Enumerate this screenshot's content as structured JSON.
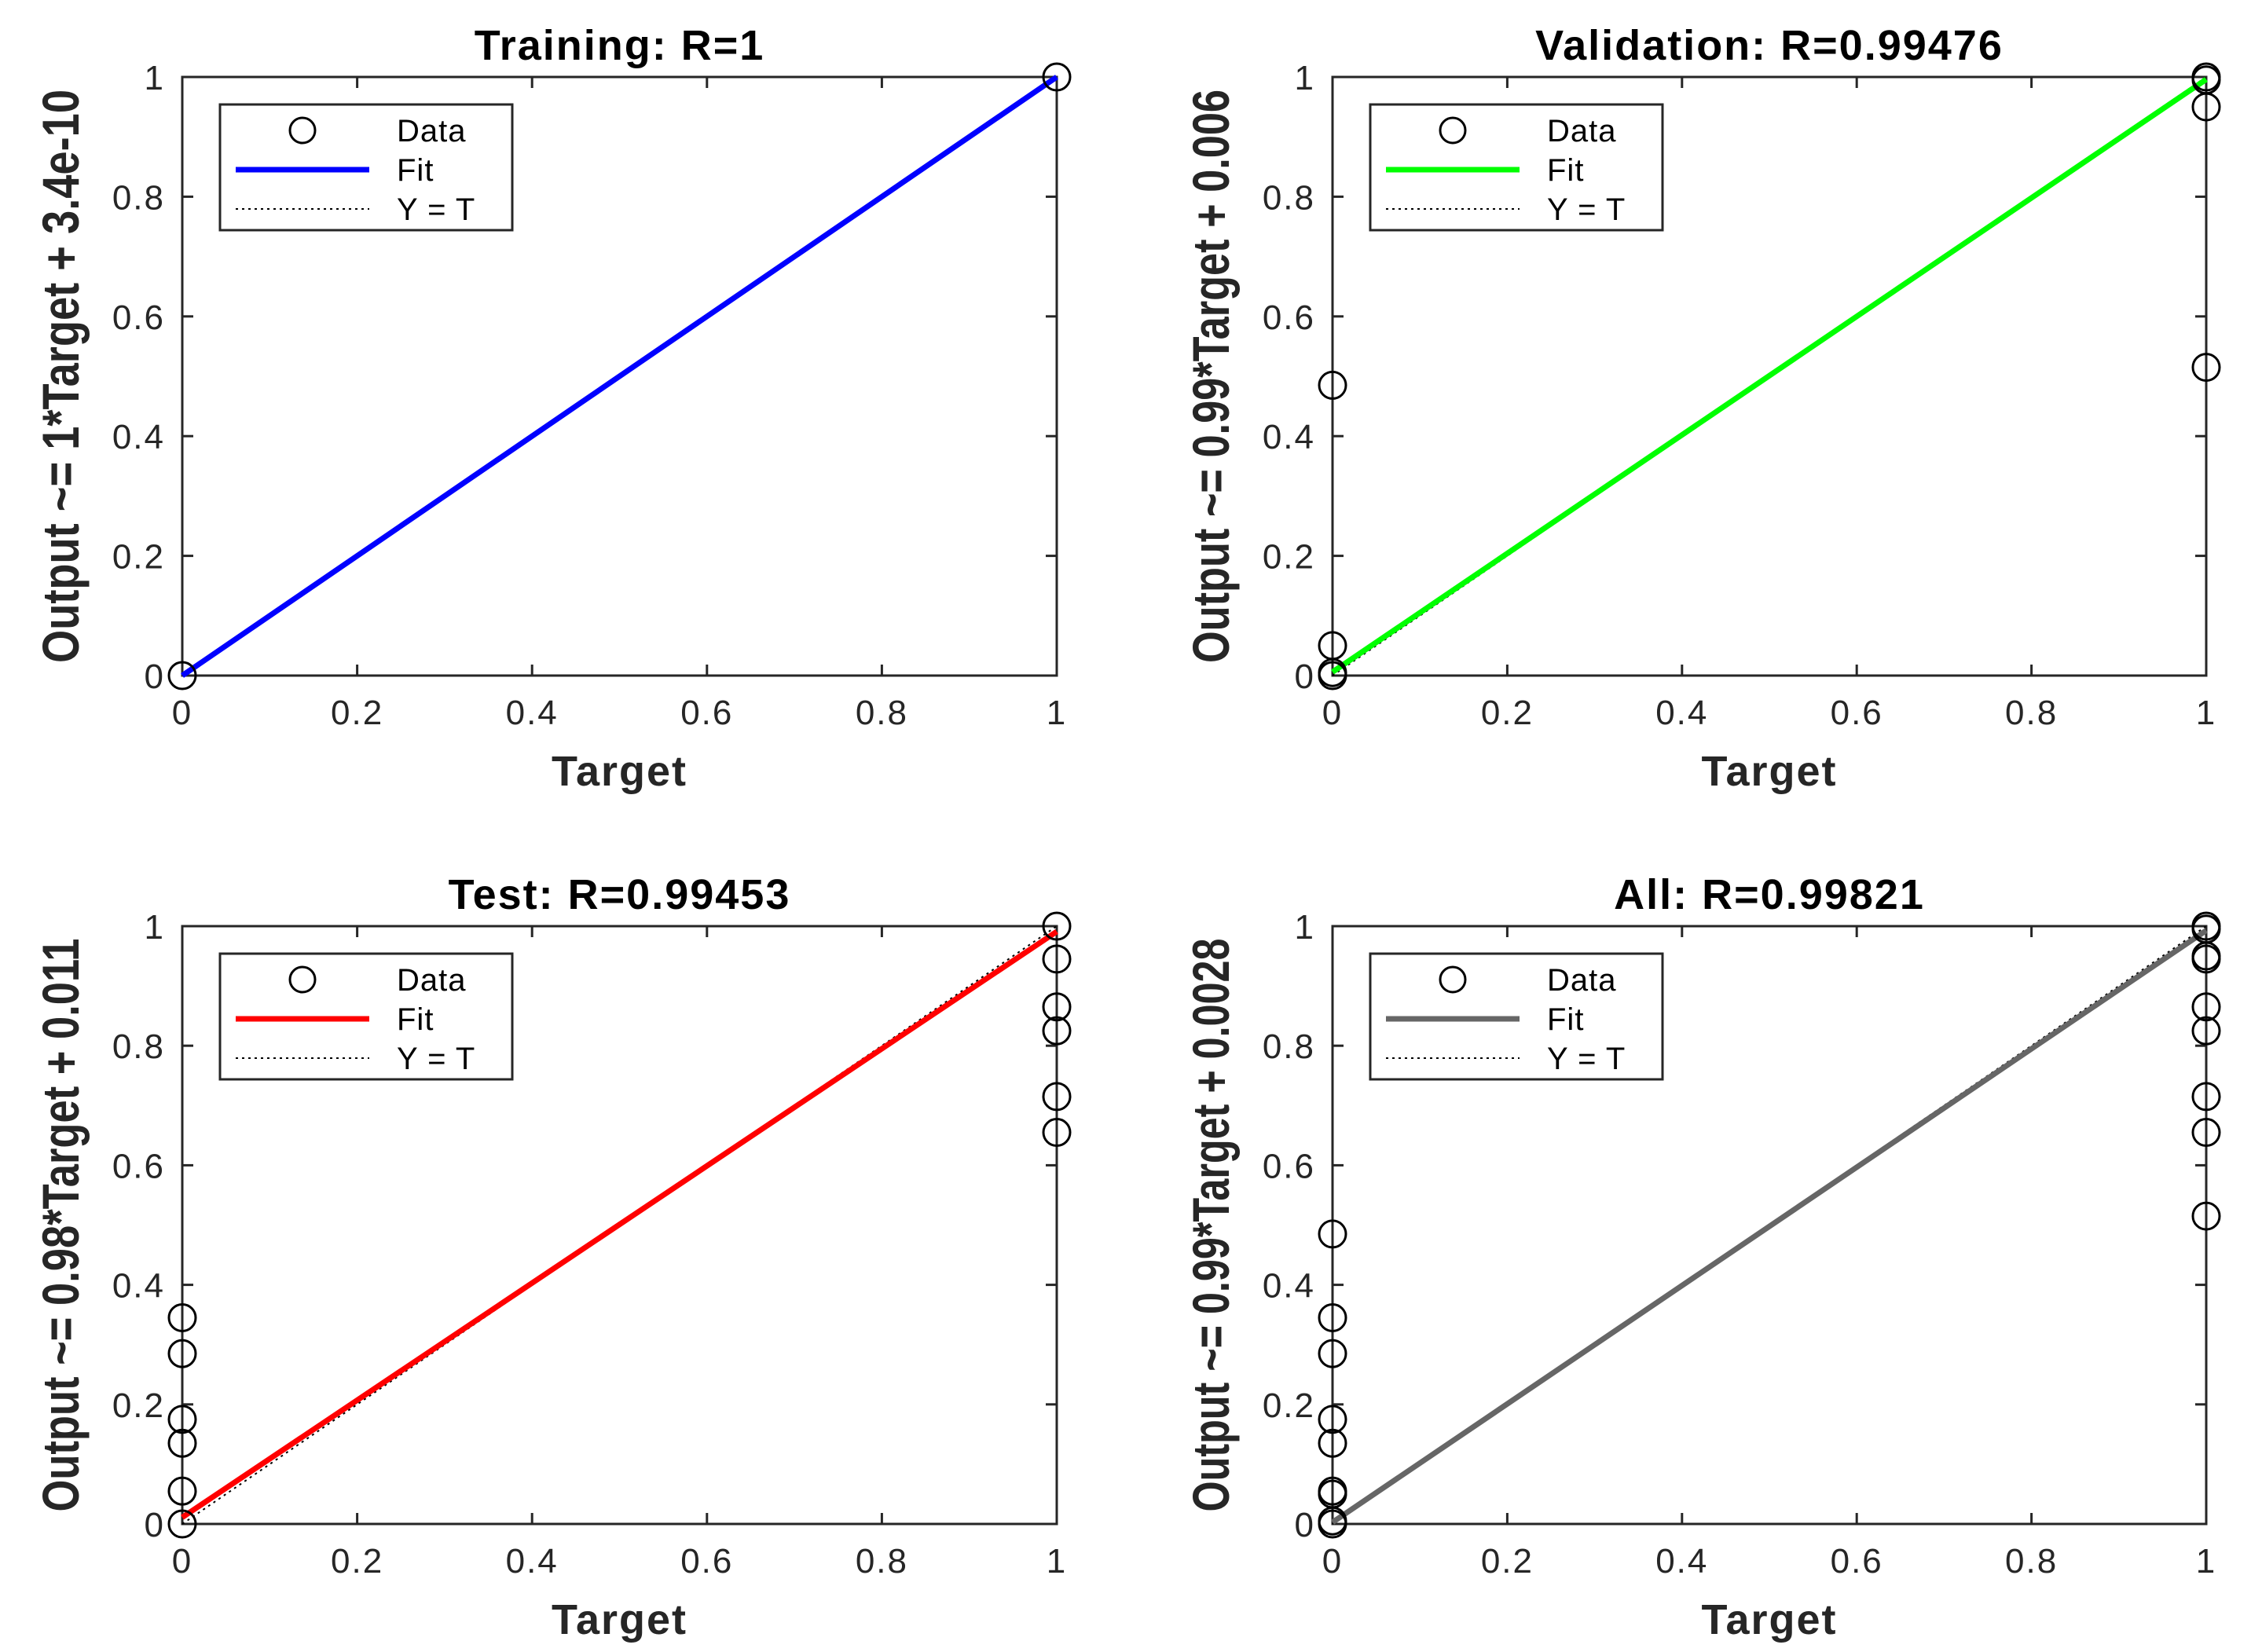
{
  "chart_data": [
    {
      "type": "scatter",
      "title": "Training: R=1",
      "xlabel": "Target",
      "ylabel": "Output ~= 1*Target + 3.4e-10",
      "xlim": [
        0,
        1
      ],
      "ylim": [
        0,
        1
      ],
      "xticks": [
        "0",
        "0.2",
        "0.4",
        "0.6",
        "0.8",
        "1"
      ],
      "yticks": [
        "0",
        "0.2",
        "0.4",
        "0.6",
        "0.8",
        "1"
      ],
      "legend": [
        "Data",
        "Fit",
        "Y = T"
      ],
      "legend_position": "top-left",
      "fit": {
        "slope": 1,
        "intercept": 0,
        "color": "#0000ff"
      },
      "data_points": [
        {
          "x": 0,
          "y": 0
        },
        {
          "x": 1,
          "y": 1
        }
      ]
    },
    {
      "type": "scatter",
      "title": "Validation: R=0.99476",
      "xlabel": "Target",
      "ylabel": "Output ~= 0.99*Target + 0.006",
      "xlim": [
        0,
        1
      ],
      "ylim": [
        0,
        1
      ],
      "xticks": [
        "0",
        "0.2",
        "0.4",
        "0.6",
        "0.8",
        "1"
      ],
      "yticks": [
        "0",
        "0.2",
        "0.4",
        "0.6",
        "0.8",
        "1"
      ],
      "legend": [
        "Data",
        "Fit",
        "Y = T"
      ],
      "legend_position": "top-left",
      "fit": {
        "slope": 0.99,
        "intercept": 0.006,
        "color": "#00ff00"
      },
      "data_points": [
        {
          "x": 0,
          "y": 0
        },
        {
          "x": 0,
          "y": 0.005
        },
        {
          "x": 0,
          "y": 0.05
        },
        {
          "x": 0,
          "y": 0.485
        },
        {
          "x": 1,
          "y": 1
        },
        {
          "x": 1,
          "y": 0.995
        },
        {
          "x": 1,
          "y": 0.95
        },
        {
          "x": 1,
          "y": 0.515
        }
      ]
    },
    {
      "type": "scatter",
      "title": "Test: R=0.99453",
      "xlabel": "Target",
      "ylabel": "Output ~= 0.98*Target + 0.011",
      "xlim": [
        0,
        1
      ],
      "ylim": [
        0,
        1
      ],
      "xticks": [
        "0",
        "0.2",
        "0.4",
        "0.6",
        "0.8",
        "1"
      ],
      "yticks": [
        "0",
        "0.2",
        "0.4",
        "0.6",
        "0.8",
        "1"
      ],
      "legend": [
        "Data",
        "Fit",
        "Y = T"
      ],
      "legend_position": "top-left",
      "fit": {
        "slope": 0.98,
        "intercept": 0.011,
        "color": "#ff0000"
      },
      "data_points": [
        {
          "x": 0,
          "y": 0
        },
        {
          "x": 0,
          "y": 0.055
        },
        {
          "x": 0,
          "y": 0.135
        },
        {
          "x": 0,
          "y": 0.175
        },
        {
          "x": 0,
          "y": 0.285
        },
        {
          "x": 0,
          "y": 0.345
        },
        {
          "x": 1,
          "y": 1
        },
        {
          "x": 1,
          "y": 0.945
        },
        {
          "x": 1,
          "y": 0.865
        },
        {
          "x": 1,
          "y": 0.825
        },
        {
          "x": 1,
          "y": 0.715
        },
        {
          "x": 1,
          "y": 0.655
        }
      ]
    },
    {
      "type": "scatter",
      "title": "All: R=0.99821",
      "xlabel": "Target",
      "ylabel": "Output ~= 0.99*Target + 0.0028",
      "xlim": [
        0,
        1
      ],
      "ylim": [
        0,
        1
      ],
      "xticks": [
        "0",
        "0.2",
        "0.4",
        "0.6",
        "0.8",
        "1"
      ],
      "yticks": [
        "0",
        "0.2",
        "0.4",
        "0.6",
        "0.8",
        "1"
      ],
      "legend": [
        "Data",
        "Fit",
        "Y = T"
      ],
      "legend_position": "top-left",
      "fit": {
        "slope": 0.99,
        "intercept": 0.0028,
        "color": "#666666"
      },
      "data_points": [
        {
          "x": 0,
          "y": 0
        },
        {
          "x": 0,
          "y": 0.005
        },
        {
          "x": 0,
          "y": 0.05
        },
        {
          "x": 0,
          "y": 0.055
        },
        {
          "x": 0,
          "y": 0.135
        },
        {
          "x": 0,
          "y": 0.175
        },
        {
          "x": 0,
          "y": 0.285
        },
        {
          "x": 0,
          "y": 0.345
        },
        {
          "x": 0,
          "y": 0.485
        },
        {
          "x": 1,
          "y": 1
        },
        {
          "x": 1,
          "y": 0.995
        },
        {
          "x": 1,
          "y": 0.95
        },
        {
          "x": 1,
          "y": 0.945
        },
        {
          "x": 1,
          "y": 0.865
        },
        {
          "x": 1,
          "y": 0.825
        },
        {
          "x": 1,
          "y": 0.715
        },
        {
          "x": 1,
          "y": 0.655
        },
        {
          "x": 1,
          "y": 0.515
        }
      ]
    }
  ]
}
